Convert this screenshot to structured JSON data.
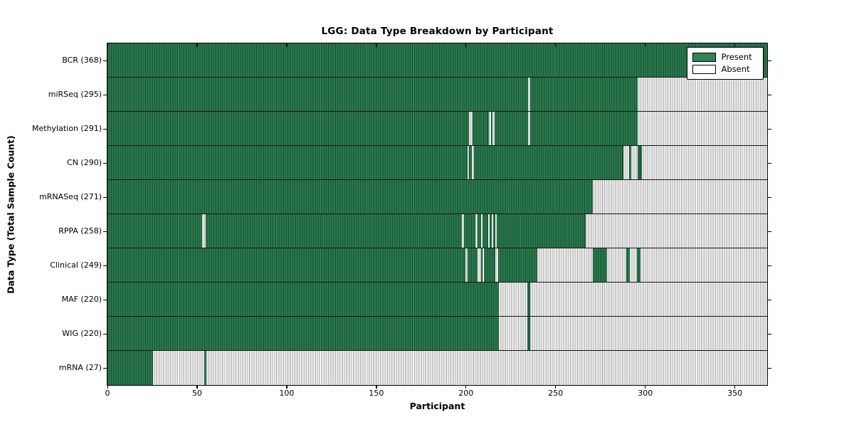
{
  "title": "LGG: Data Type Breakdown by Participant",
  "axes": {
    "xlabel": "Participant",
    "ylabel": "Data Type (Total Sample Count)"
  },
  "chart_data": {
    "type": "heatmap",
    "title": "LGG: Data Type Breakdown by Participant",
    "xlabel": "Participant",
    "ylabel": "Data Type (Total Sample Count)",
    "xlim": [
      0,
      368
    ],
    "xticks": [
      0,
      50,
      100,
      150,
      200,
      250,
      300,
      350
    ],
    "grid": false,
    "legend_position": "upper right",
    "legend_items": [
      {
        "label": "Present",
        "color": "#2e8656"
      },
      {
        "label": "Absent",
        "color": "#ffffff"
      }
    ],
    "colors": {
      "present_fill": "#2e8656",
      "present_line": "#16472c",
      "absent_fill": "#fafafa",
      "absent_line": "#a8a8a8",
      "axis_border": "#000000"
    },
    "rows": [
      {
        "label": "BCR (368)",
        "data_type": "BCR",
        "total": 368,
        "present_ranges": [
          [
            0,
            368
          ]
        ]
      },
      {
        "label": "miRSeq (295)",
        "data_type": "miRSeq",
        "total": 295,
        "present_ranges": [
          [
            0,
            235
          ],
          [
            236,
            296
          ]
        ]
      },
      {
        "label": "Methylation (291)",
        "data_type": "Methylation",
        "total": 291,
        "present_ranges": [
          [
            0,
            202
          ],
          [
            204,
            213
          ],
          [
            214,
            215
          ],
          [
            216,
            235
          ],
          [
            236,
            296
          ]
        ]
      },
      {
        "label": "CN (290)",
        "data_type": "CN",
        "total": 290,
        "present_ranges": [
          [
            0,
            201
          ],
          [
            202,
            203.5
          ],
          [
            204.5,
            288
          ],
          [
            291,
            292.5
          ],
          [
            296,
            298.5
          ]
        ]
      },
      {
        "label": "mRNASeq (271)",
        "data_type": "mRNASeq",
        "total": 271,
        "present_ranges": [
          [
            0,
            271
          ]
        ]
      },
      {
        "label": "RPPA (258)",
        "data_type": "RPPA",
        "total": 258,
        "present_ranges": [
          [
            0,
            53
          ],
          [
            55,
            198
          ],
          [
            199,
            205.5
          ],
          [
            206.5,
            208.5
          ],
          [
            209.5,
            212.5
          ],
          [
            213.5,
            214.5
          ],
          [
            215.5,
            216.5
          ],
          [
            217.5,
            267
          ]
        ]
      },
      {
        "label": "Clinical (249)",
        "data_type": "Clinical",
        "total": 249,
        "present_ranges": [
          [
            0,
            200
          ],
          [
            201,
            206.5
          ],
          [
            208.5,
            209.3
          ],
          [
            210.3,
            216.5
          ],
          [
            218,
            240
          ],
          [
            271,
            279
          ],
          [
            289.5,
            291.5
          ],
          [
            295.5,
            297.5
          ]
        ]
      },
      {
        "label": "MAF (220)",
        "data_type": "MAF",
        "total": 220,
        "present_ranges": [
          [
            0,
            218.5
          ],
          [
            234.5,
            236
          ]
        ]
      },
      {
        "label": "WIG (220)",
        "data_type": "WIG",
        "total": 220,
        "present_ranges": [
          [
            0,
            218.5
          ],
          [
            234.5,
            236
          ]
        ]
      },
      {
        "label": "mRNA (27)",
        "data_type": "mRNA",
        "total": 27,
        "present_ranges": [
          [
            0,
            25.5
          ],
          [
            54,
            55.5
          ]
        ]
      }
    ]
  }
}
